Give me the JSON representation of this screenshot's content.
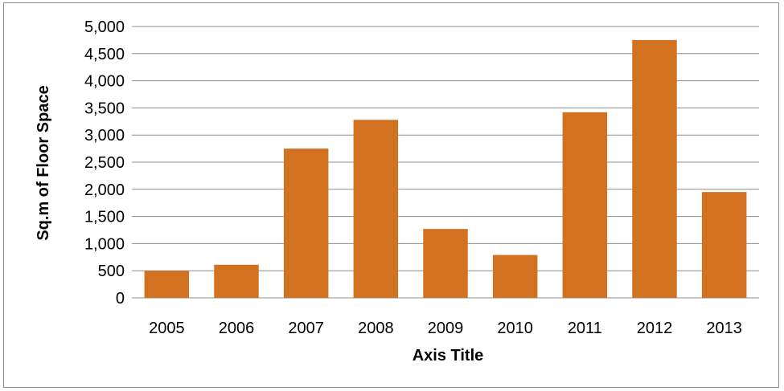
{
  "chart_data": {
    "type": "bar",
    "categories": [
      "2005",
      "2006",
      "2007",
      "2008",
      "2009",
      "2010",
      "2011",
      "2012",
      "2013"
    ],
    "values": [
      500,
      610,
      2750,
      3280,
      1270,
      790,
      3420,
      4750,
      1950
    ],
    "xlabel": "Axis Title",
    "ylabel": "Sq.m of  Floor Space",
    "ylim": [
      0,
      5000
    ],
    "yticks": [
      "0",
      "500",
      "1,000",
      "1,500",
      "2,000",
      "2,500",
      "3,000",
      "3,500",
      "4,000",
      "4,500",
      "5,000"
    ],
    "grid": true,
    "legend": "none",
    "colors": {
      "bar": "#d2711f",
      "gridline": "#8c8c8c",
      "border": "#8c8c8c"
    }
  }
}
